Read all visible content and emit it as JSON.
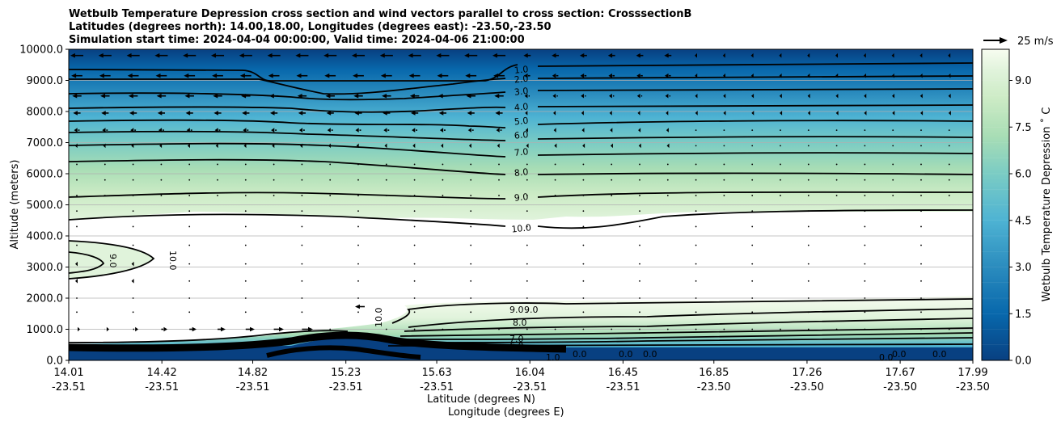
{
  "chart_data": {
    "type": "contour",
    "title_lines": [
      "Wetbulb Temperature Depression cross section and wind vectors parallel to cross section: CrosssectionB",
      "Latitudes (degrees north): 14.00,18.00, Longitudes (degrees east): -23.50,-23.50",
      "Simulation start time: 2024-04-04 00:00:00, Valid time: 2024-04-06 21:00:00"
    ],
    "ylabel": "Altitude (meters)",
    "xlabel_lat": "Latitude (degrees N)",
    "xlabel_lon": "Longitude (degrees E)",
    "ylim": [
      0,
      10000
    ],
    "y_ticks": [
      "0.0",
      "1000.0",
      "2000.0",
      "3000.0",
      "4000.0",
      "5000.0",
      "6000.0",
      "7000.0",
      "8000.0",
      "9000.0",
      "10000.0"
    ],
    "x_ticks": [
      {
        "lat": "14.01",
        "lon": "-23.51"
      },
      {
        "lat": "14.42",
        "lon": "-23.51"
      },
      {
        "lat": "14.82",
        "lon": "-23.51"
      },
      {
        "lat": "15.23",
        "lon": "-23.51"
      },
      {
        "lat": "15.63",
        "lon": "-23.51"
      },
      {
        "lat": "16.04",
        "lon": "-23.51"
      },
      {
        "lat": "16.45",
        "lon": "-23.51"
      },
      {
        "lat": "16.85",
        "lon": "-23.50"
      },
      {
        "lat": "17.26",
        "lon": "-23.50"
      },
      {
        "lat": "17.67",
        "lon": "-23.50"
      },
      {
        "lat": "17.99",
        "lon": "-23.50"
      }
    ],
    "x_range": [
      14.01,
      17.99
    ],
    "colorbar": {
      "label": "Wetbulb Temperature Depression ˚ C",
      "range": [
        0,
        10
      ],
      "ticks": [
        "0.0",
        "1.5",
        "3.0",
        "4.5",
        "6.0",
        "7.5",
        "9.0"
      ],
      "cmap": "GnBu_r"
    },
    "quiver_key": "25 m/s",
    "upper_contours": [
      {
        "level": "1.0",
        "alt": 9350
      },
      {
        "level": "2.0",
        "alt": 9050
      },
      {
        "level": "3.0",
        "alt": 8650
      },
      {
        "level": "4.0",
        "alt": 8150
      },
      {
        "level": "5.0",
        "alt": 7700
      },
      {
        "level": "6.0",
        "alt": 7250
      },
      {
        "level": "7.0",
        "alt": 6700
      },
      {
        "level": "8.0",
        "alt": 6050
      },
      {
        "level": "9.0",
        "alt": 5250
      },
      {
        "level": "10.0",
        "alt": 4250
      }
    ],
    "lower_contour_labels": [
      "9.0",
      "9.0",
      "8.0",
      "7.0",
      "6.0",
      "1.0",
      "0.0",
      "0.0",
      "0.0",
      "0.0",
      "0.0",
      "0.0",
      "10.0",
      "10.0",
      "9.0"
    ],
    "wind": {
      "upper_levels": [
        9800,
        9150,
        8500,
        7950,
        7400,
        6900
      ],
      "upper_speeds_ms": [
        14,
        12,
        10,
        8,
        6,
        4
      ],
      "lower_levels": [
        1000
      ],
      "lower_note": "easterly winds aloft, westerly near surface at southern end"
    }
  }
}
